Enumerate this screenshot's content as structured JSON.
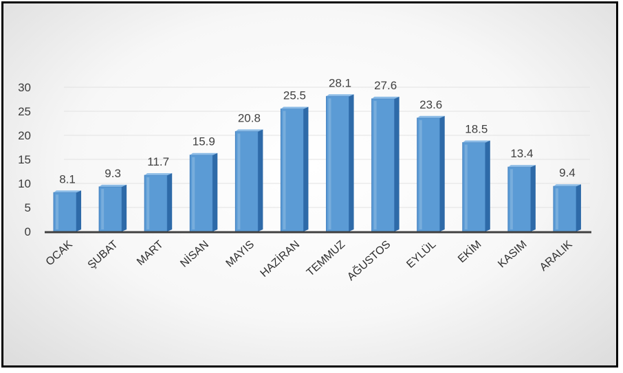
{
  "chart_data": {
    "type": "bar",
    "categories": [
      "OCAK",
      "ŞUBAT",
      "MART",
      "NİSAN",
      "MAYIS",
      "HAZİRAN",
      "TEMMUZ",
      "AĞUSTOS",
      "EYLÜL",
      "EKİM",
      "KASIM",
      "ARALIK"
    ],
    "series": [
      {
        "values": [
          8.1,
          9.3,
          11.7,
          15.9,
          20.8,
          25.5,
          28.1,
          27.6,
          23.6,
          18.5,
          13.4,
          9.4
        ]
      }
    ],
    "data_labels": [
      "8.1",
      "9.3",
      "11.7",
      "15.9",
      "20.8",
      "25.5",
      "28.1",
      "27.6",
      "23.6",
      "18.5",
      "13.4",
      "9.4"
    ],
    "y_ticks": [
      "0",
      "5",
      "10",
      "15",
      "20",
      "25",
      "30"
    ],
    "ylim": [
      0,
      30
    ],
    "grid": true,
    "legend": "none",
    "title": "",
    "xlabel": "",
    "ylabel": "",
    "colors": {
      "bar_front": "#5b9bd5",
      "bar_side": "#2e6aa8",
      "bar_top": "#8bbbe6",
      "gridline": "#e2e2e2",
      "axis": "#404040",
      "frame": "#000000"
    }
  }
}
